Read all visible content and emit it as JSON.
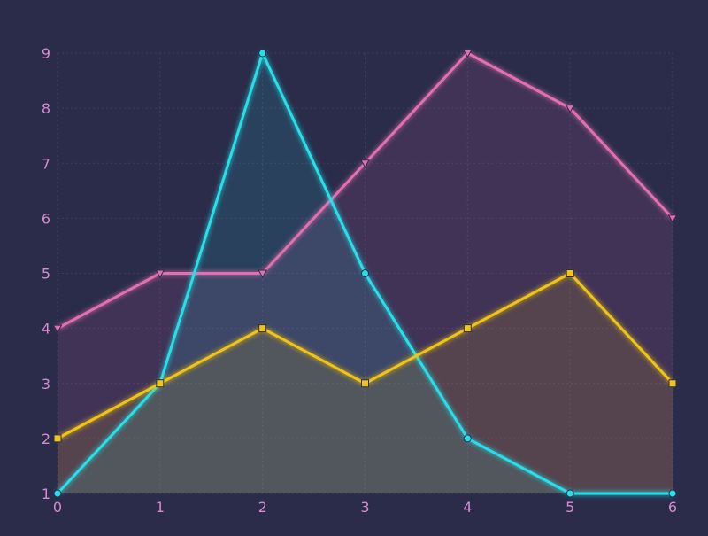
{
  "chart_data": {
    "type": "area",
    "x": [
      0,
      1,
      2,
      3,
      4,
      5,
      6
    ],
    "xlim": [
      0,
      6
    ],
    "ylim": [
      1,
      9
    ],
    "x_ticks": [
      "0",
      "1",
      "2",
      "3",
      "4",
      "5",
      "6"
    ],
    "y_ticks": [
      "1",
      "2",
      "3",
      "4",
      "5",
      "6",
      "7",
      "8",
      "9"
    ],
    "grid": true,
    "legend": "none",
    "series": [
      {
        "values": [
          4,
          5,
          5,
          7,
          9,
          8,
          6
        ],
        "color": "#e36fae",
        "marker": "triangle-down"
      },
      {
        "values": [
          1,
          3,
          9,
          5,
          2,
          1,
          1
        ],
        "color": "#27dfe8",
        "marker": "circle"
      },
      {
        "values": [
          2,
          3,
          4,
          3,
          4,
          5,
          3
        ],
        "color": "#f0c419",
        "marker": "square"
      }
    ],
    "style": {
      "background": "#2a2c4a",
      "tick_label_color": "#d88ad0",
      "grid_color": "#3c3f66"
    }
  }
}
